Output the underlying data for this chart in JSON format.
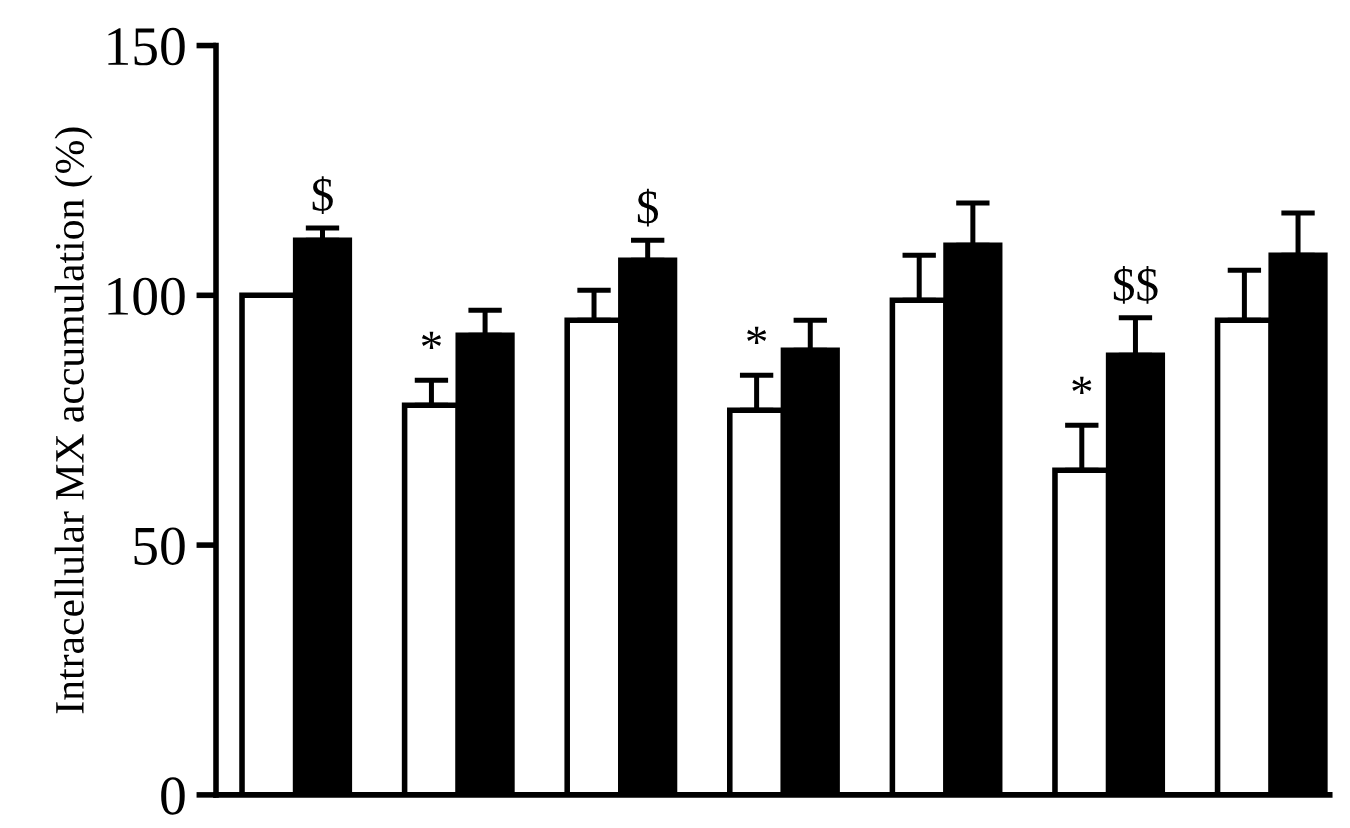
{
  "chart_data": {
    "type": "bar",
    "ylabel": "Intracellular MX accumulation (%)",
    "categories": [
      null,
      null,
      null,
      null,
      null,
      null,
      null
    ],
    "series": [
      {
        "color": "#ffffff",
        "values": [
          100,
          78,
          95,
          77,
          99,
          65,
          95
        ],
        "errors": [
          null,
          [
            78,
            83
          ],
          [
            95,
            101
          ],
          [
            77,
            84
          ],
          [
            99,
            108
          ],
          [
            65,
            74
          ],
          [
            95,
            105
          ]
        ],
        "value_labels": [
          null,
          "*",
          null,
          "*",
          null,
          "*",
          null
        ]
      },
      {
        "color": "#000000",
        "values": [
          111,
          92,
          107,
          89,
          110,
          88,
          108
        ],
        "errors": [
          [
            111,
            113.5
          ],
          [
            92,
            97
          ],
          [
            107,
            111
          ],
          [
            89,
            95
          ],
          [
            110,
            118.5
          ],
          [
            88,
            95.5
          ],
          [
            108,
            116.5
          ]
        ],
        "value_labels": [
          "$",
          null,
          "$",
          null,
          null,
          "$$",
          null
        ]
      }
    ],
    "ylim": [
      0,
      150
    ],
    "yticks": [
      0,
      50,
      100,
      150
    ],
    "grid": false,
    "legend": false
  }
}
